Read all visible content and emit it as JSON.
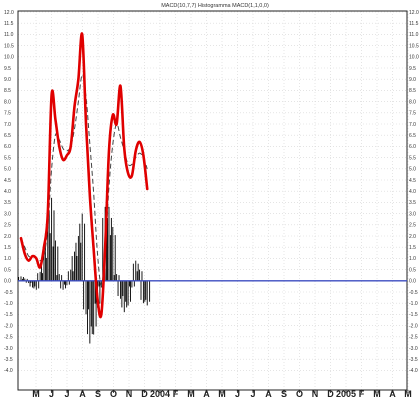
{
  "chart_data": {
    "type": "line",
    "title": "MACD(10,7,7) Histogramma MACD(1,1,0,0)",
    "ylim": [
      -4.4,
      12.4
    ],
    "grid": true,
    "yticks": [
      "12.0",
      "11.5",
      "11.0",
      "10.5",
      "10.0",
      "9.5",
      "9.0",
      "8.5",
      "8.0",
      "7.5",
      "7.0",
      "6.5",
      "6.0",
      "5.5",
      "5.0",
      "4.5",
      "4.0",
      "3.5",
      "3.0",
      "2.5",
      "2.0",
      "1.5",
      "1.0",
      "0.5",
      "0.0",
      "-0.5",
      "-1.0",
      "-1.5",
      "-2.0",
      "-2.5",
      "-3.0",
      "-3.5",
      "-4.0"
    ],
    "xticks": [
      "M",
      "J",
      "J",
      "A",
      "S",
      "O",
      "N",
      "D",
      "2004",
      "F",
      "M",
      "A",
      "M",
      "J",
      "J",
      "A",
      "S",
      "O",
      "N",
      "D",
      "2005",
      "F",
      "M",
      "A",
      "M",
      "J"
    ],
    "x": [
      0,
      0.5,
      1,
      1.5,
      2,
      2.5,
      3,
      3.5,
      4,
      4.5,
      5,
      5.5,
      6,
      6.5,
      7,
      7.5,
      8,
      8.5,
      9,
      9.5,
      10,
      10.5,
      11,
      11.5,
      12,
      12.5,
      13,
      13.5,
      14,
      14.5,
      15,
      15.5,
      16,
      16.5,
      17,
      17.5,
      18,
      18.5,
      19,
      19.5,
      20,
      20.5,
      21,
      21.5,
      22,
      22.5,
      23,
      23.5
    ],
    "series": [
      {
        "style": "macd-line",
        "color": "#e00000",
        "values": [
          1.9,
          1.2,
          0.9,
          1.1,
          1.0,
          0.6,
          1.5,
          3.0,
          8.3,
          7.2,
          6.0,
          5.4,
          5.6,
          6.0,
          7.8,
          9.0,
          11.0,
          7.0,
          3.8,
          1.4,
          -0.8,
          -1.5,
          1.5,
          5.8,
          7.4,
          7.0,
          8.7,
          5.9,
          4.8,
          4.7,
          5.8,
          6.2,
          5.6,
          4.1,
          null,
          null,
          null,
          null,
          null,
          null,
          null,
          null,
          null,
          null,
          null,
          null,
          null,
          null
        ]
      },
      {
        "style": "signal-line",
        "color": "#444444",
        "values": [
          1.9,
          1.5,
          1.1,
          1.1,
          1.0,
          0.9,
          1.1,
          2.4,
          5.0,
          6.5,
          6.3,
          5.9,
          5.8,
          6.0,
          6.8,
          8.0,
          9.2,
          8.2,
          6.1,
          3.9,
          1.2,
          -0.2,
          1.3,
          4.2,
          6.1,
          7.0,
          6.4,
          5.8,
          5.2,
          5.2,
          5.5,
          5.7,
          5.5,
          5.0,
          null,
          null,
          null,
          null,
          null,
          null,
          null,
          null,
          null,
          null,
          null,
          null,
          null,
          null
        ]
      },
      {
        "style": "histogram",
        "color": "#000000",
        "values": [
          0.2,
          0.1,
          -0.1,
          -0.3,
          -0.4,
          0.4,
          1.2,
          2.5,
          3.7,
          1.8,
          0.3,
          -0.4,
          -0.2,
          0.5,
          1.3,
          2.0,
          3.0,
          -1.5,
          -2.8,
          -2.4,
          -1.2,
          -0.3,
          3.3,
          3.3,
          2.4,
          0.3,
          -0.8,
          -1.4,
          -1.1,
          -0.3,
          0.9,
          0.5,
          -1.0,
          -1.1,
          null,
          null,
          null,
          null,
          null,
          null,
          null,
          null,
          null,
          null,
          null,
          null,
          null,
          null
        ]
      }
    ]
  }
}
